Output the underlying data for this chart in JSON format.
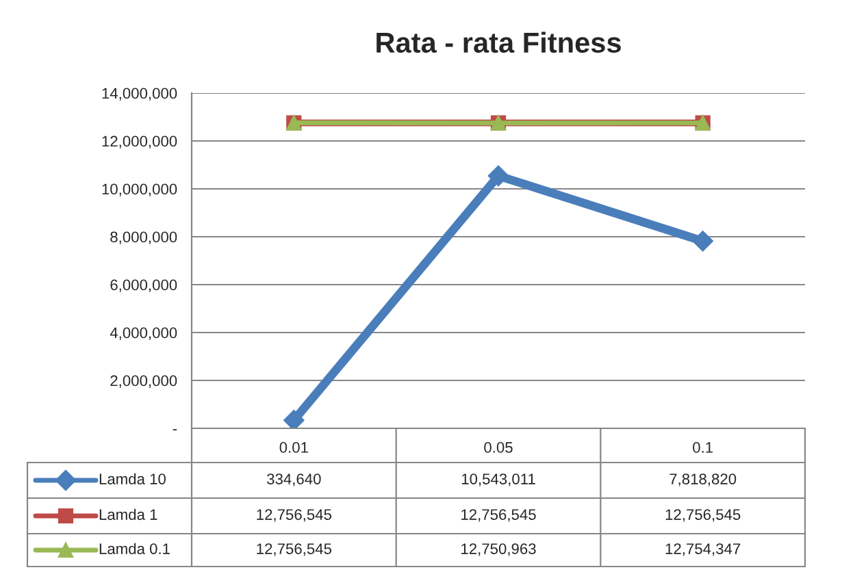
{
  "chart_data": {
    "type": "line",
    "title": "Rata - rata Fitness",
    "categories": [
      "0.01",
      "0.05",
      "0.1"
    ],
    "series": [
      {
        "name": "Lamda 10",
        "color": "#4a7ebb",
        "marker": "diamond",
        "values": [
          334640,
          10543011,
          7818820
        ],
        "value_labels": [
          "334,640",
          "10,543,011",
          "7,818,820"
        ]
      },
      {
        "name": "Lamda 1",
        "color": "#be4b48",
        "marker": "square",
        "values": [
          12756545,
          12756545,
          12756545
        ],
        "value_labels": [
          "12,756,545",
          "12,756,545",
          "12,756,545"
        ]
      },
      {
        "name": "Lamda 0.1",
        "color": "#98b954",
        "marker": "triangle",
        "values": [
          12756545,
          12750963,
          12754347
        ],
        "value_labels": [
          "12,756,545",
          "12,750,963",
          "12,754,347"
        ]
      }
    ],
    "ylim": [
      0,
      14000000
    ],
    "yticks": [
      {
        "value": 0,
        "label": "-"
      },
      {
        "value": 2000000,
        "label": "2,000,000"
      },
      {
        "value": 4000000,
        "label": "4,000,000"
      },
      {
        "value": 6000000,
        "label": "6,000,000"
      },
      {
        "value": 8000000,
        "label": "8,000,000"
      },
      {
        "value": 10000000,
        "label": "10,000,000"
      },
      {
        "value": 12000000,
        "label": "12,000,000"
      },
      {
        "value": 14000000,
        "label": "14,000,000"
      }
    ],
    "grid": "y",
    "legend": "bottom",
    "line_style": "solid"
  }
}
